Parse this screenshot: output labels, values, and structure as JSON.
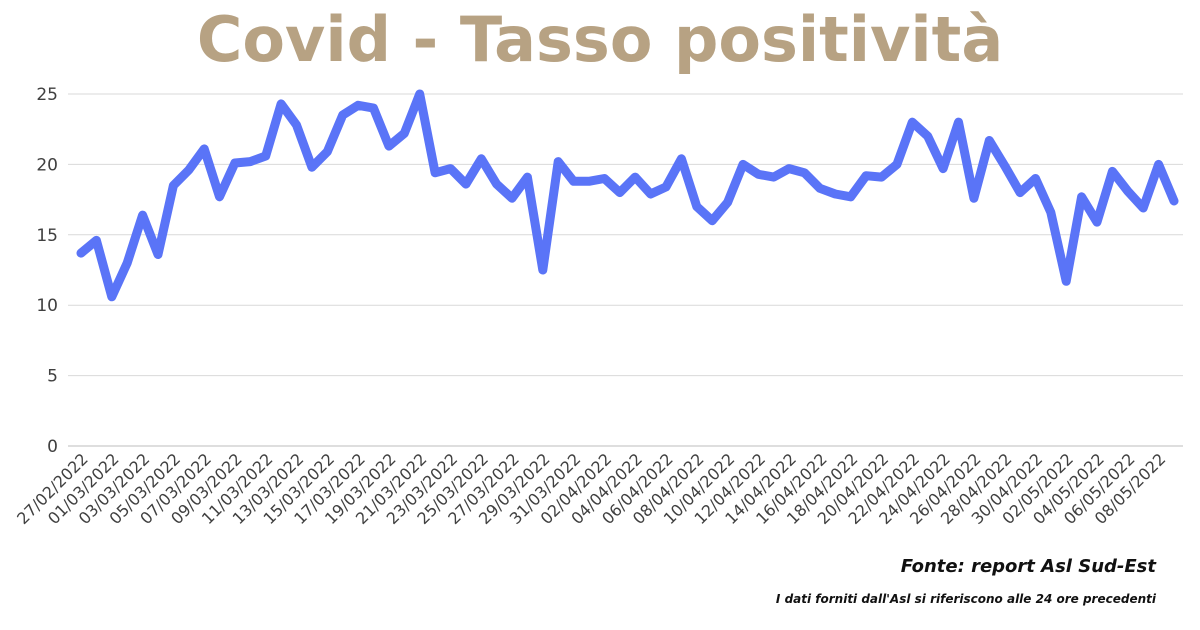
{
  "chart_data": {
    "type": "line",
    "title": "Covid - Tasso positività",
    "xlabel": "",
    "ylabel": "",
    "ylim": [
      0,
      25
    ],
    "yticks": [
      "0",
      "5",
      "10",
      "15",
      "20",
      "25"
    ],
    "grid": "horizontal",
    "line_color": "#5a74f7",
    "title_color": "#b7a283",
    "x": [
      "27/02/2022",
      "28/02/2022",
      "01/03/2022",
      "02/03/2022",
      "03/03/2022",
      "04/03/2022",
      "05/03/2022",
      "06/03/2022",
      "07/03/2022",
      "08/03/2022",
      "09/03/2022",
      "10/03/2022",
      "11/03/2022",
      "12/03/2022",
      "13/03/2022",
      "14/03/2022",
      "15/03/2022",
      "16/03/2022",
      "17/03/2022",
      "18/03/2022",
      "19/03/2022",
      "20/03/2022",
      "21/03/2022",
      "22/03/2022",
      "23/03/2022",
      "24/03/2022",
      "25/03/2022",
      "26/03/2022",
      "27/03/2022",
      "28/03/2022",
      "29/03/2022",
      "30/03/2022",
      "31/03/2022",
      "01/04/2022",
      "02/04/2022",
      "03/04/2022",
      "04/04/2022",
      "05/04/2022",
      "06/04/2022",
      "07/04/2022",
      "08/04/2022",
      "09/04/2022",
      "10/04/2022",
      "11/04/2022",
      "12/04/2022",
      "13/04/2022",
      "14/04/2022",
      "15/04/2022",
      "16/04/2022",
      "17/04/2022",
      "18/04/2022",
      "19/04/2022",
      "20/04/2022",
      "21/04/2022",
      "22/04/2022",
      "23/04/2022",
      "24/04/2022",
      "25/04/2022",
      "26/04/2022",
      "27/04/2022",
      "28/04/2022",
      "29/04/2022",
      "30/04/2022",
      "01/05/2022",
      "02/05/2022",
      "03/05/2022",
      "04/05/2022",
      "05/05/2022",
      "06/05/2022",
      "07/05/2022",
      "08/05/2022",
      "09/05/2022"
    ],
    "x_labels_shown": [
      "27/02/2022",
      "01/03/2022",
      "03/03/2022",
      "05/03/2022",
      "07/03/2022",
      "09/03/2022",
      "11/03/2022",
      "13/03/2022",
      "15/03/2022",
      "17/03/2022",
      "19/03/2022",
      "21/03/2022",
      "23/03/2022",
      "25/03/2022",
      "27/03/2022",
      "29/03/2022",
      "31/03/2022",
      "02/04/2022",
      "04/04/2022",
      "06/04/2022",
      "08/04/2022",
      "10/04/2022",
      "12/04/2022",
      "14/04/2022",
      "16/04/2022",
      "18/04/2022",
      "20/04/2022",
      "22/04/2022",
      "24/04/2022",
      "26/04/2022",
      "28/04/2022",
      "30/04/2022",
      "02/05/2022",
      "04/05/2022",
      "06/05/2022",
      "08/05/2022"
    ],
    "series": [
      {
        "values": [
          13.7,
          14.6,
          10.6,
          13.0,
          16.4,
          13.6,
          18.5,
          19.6,
          21.1,
          17.7,
          20.1,
          20.2,
          20.6,
          24.3,
          22.8,
          19.8,
          20.9,
          23.5,
          24.2,
          24.0,
          21.3,
          22.2,
          25.0,
          19.4,
          19.7,
          18.6,
          20.4,
          18.6,
          17.6,
          19.1,
          12.5,
          20.2,
          18.8,
          18.8,
          19.0,
          18.0,
          19.1,
          17.9,
          18.4,
          20.4,
          17.0,
          16.0,
          17.3,
          20.0,
          19.3,
          19.1,
          19.7,
          19.4,
          18.3,
          17.9,
          17.7,
          19.2,
          19.1,
          20.0,
          23.0,
          22.0,
          19.7,
          23.0,
          17.6,
          21.7,
          19.9,
          18.0,
          19.0,
          16.6,
          11.7,
          17.7,
          15.9,
          19.5,
          18.1,
          16.9,
          20.0,
          17.4
        ]
      }
    ]
  },
  "source_label": "Fonte: report Asl Sud-Est",
  "note_label": "I dati forniti dall'Asl si riferiscono alle 24 ore precedenti"
}
